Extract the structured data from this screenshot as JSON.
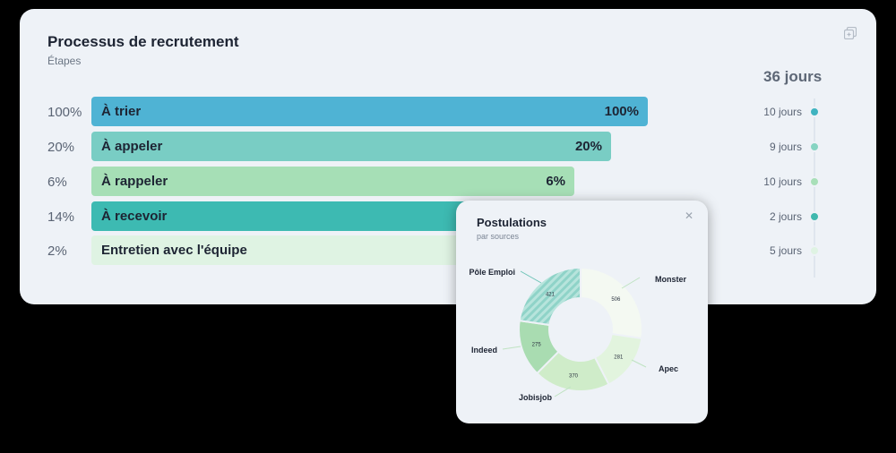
{
  "process": {
    "title": "Processus de recrutement",
    "subtitle": "Étapes",
    "total_days": "36 jours",
    "stages": [
      {
        "label": "À trier",
        "percent_text": "100%",
        "value": 100,
        "bar_text": "100%",
        "days": "10 jours",
        "color": "#4fb3d4",
        "dot_color": "#3fb3c0"
      },
      {
        "label": "À appeler",
        "percent_text": "20%",
        "value": 20,
        "bar_text": "20%",
        "days": "9 jours",
        "color": "#79cdc4",
        "dot_color": "#86d4c2"
      },
      {
        "label": "À rappeler",
        "percent_text": "6%",
        "value": 6,
        "bar_text": "6%",
        "days": "10 jours",
        "color": "#a6dfb6",
        "dot_color": "#a8dfb8"
      },
      {
        "label": "À recevoir",
        "percent_text": "14%",
        "value": 14,
        "bar_text": "",
        "days": "2 jours",
        "color": "#3dbab2",
        "dot_color": "#3fb8ae"
      },
      {
        "label": "Entretien avec l'équipe",
        "percent_text": "2%",
        "value": 2,
        "bar_text": "",
        "days": "5 jours",
        "color": "#dff3e3",
        "dot_color": "#dff3e3"
      }
    ]
  },
  "postulations": {
    "title": "Postulations",
    "subtitle": "par sources",
    "close_icon": "close-icon",
    "slices": [
      {
        "name": "Monster",
        "value": 506,
        "label": "506",
        "color": "#f4f9f2"
      },
      {
        "name": "Apec",
        "value": 281,
        "label": "281",
        "color": "#e2f4de"
      },
      {
        "name": "Jobisjob",
        "value": 370,
        "label": "370",
        "color": "#cfecc9"
      },
      {
        "name": "Indeed",
        "value": 275,
        "label": "275",
        "color": "#a9dcb1"
      },
      {
        "name": "Pôle Emploi",
        "value": 421,
        "label": "421",
        "color": "#86cfc4",
        "hatched": true
      }
    ]
  },
  "icons": {
    "duplicate": "duplicate-icon"
  }
}
